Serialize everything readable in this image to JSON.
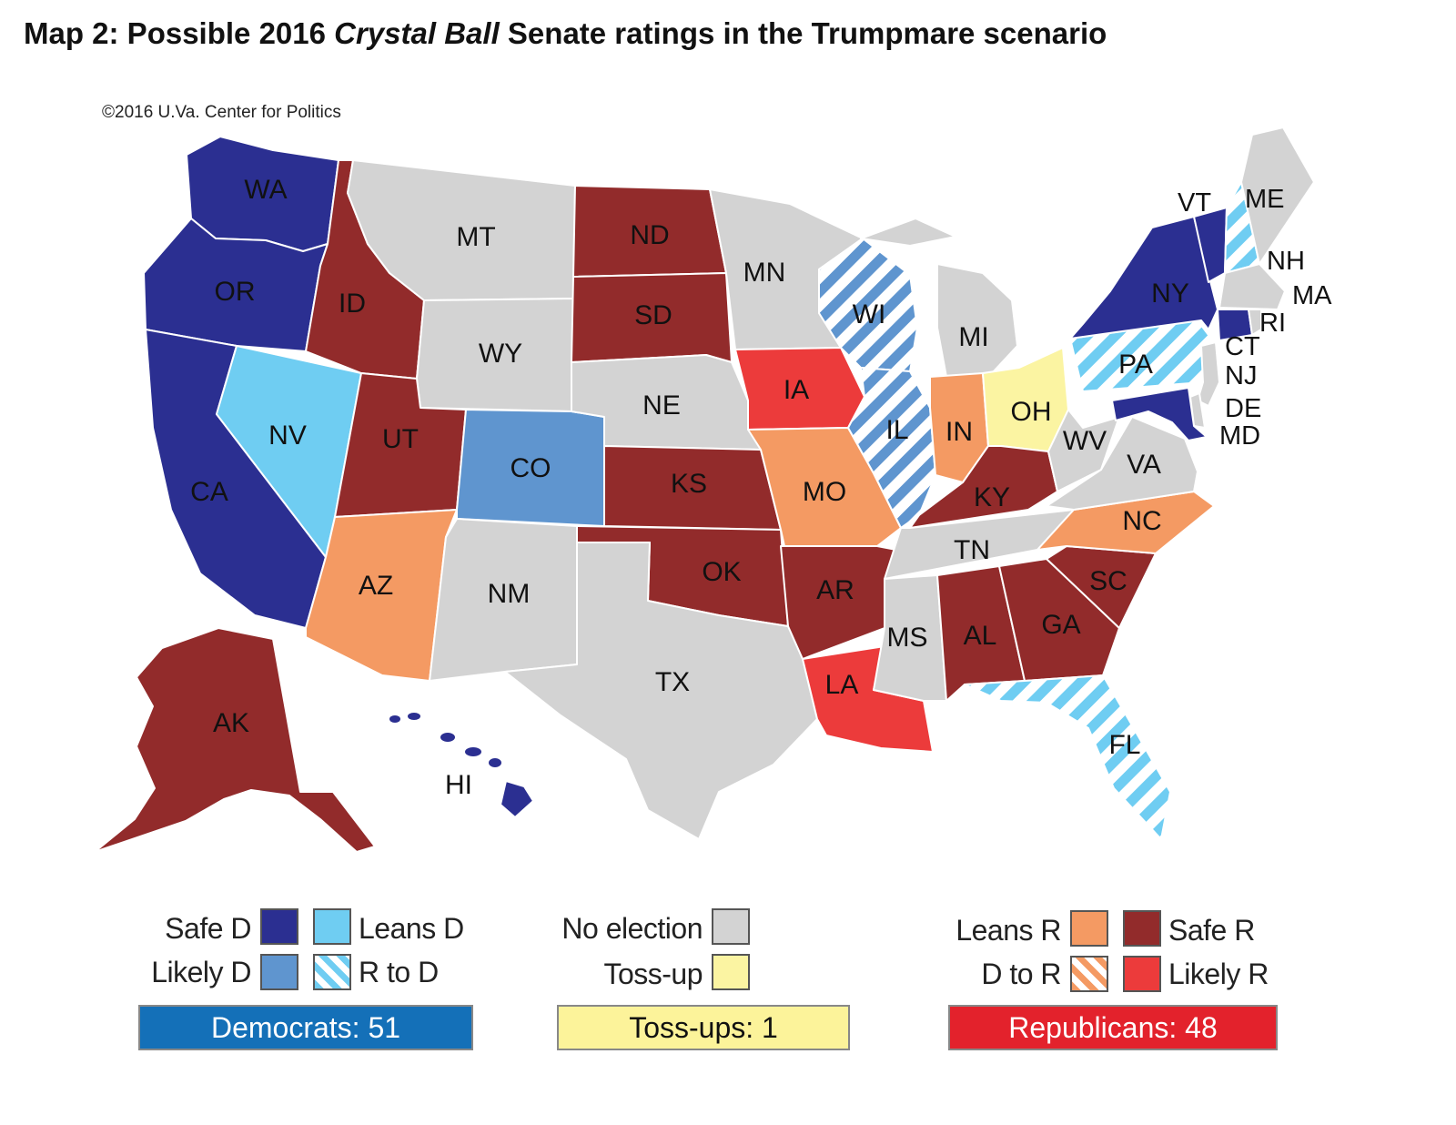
{
  "title": {
    "prefix": "Map 2: Possible 2016 ",
    "emphasis": "Crystal Ball",
    "suffix": " Senate ratings in the Trumpmare scenario"
  },
  "credit": "©2016 U.Va. Center for Politics",
  "colors": {
    "safe_d": "#2b2f91",
    "likely_d": "#5f95cf",
    "leans_d": "#6fcdf2",
    "safe_r": "#922b2b",
    "likely_r": "#ec3b3b",
    "leans_r": "#f49a63",
    "no_election": "#d3d3d3",
    "toss_up": "#fbf4a2",
    "democrats_bar": "#1470b8",
    "tossups_bar": "#fcf39a",
    "republicans_bar": "#e3222c"
  },
  "states": {
    "WA": "WA",
    "OR": "OR",
    "CA": "CA",
    "NV": "NV",
    "ID": "ID",
    "MT": "MT",
    "WY": "WY",
    "UT": "UT",
    "AZ": "AZ",
    "CO": "CO",
    "NM": "NM",
    "ND": "ND",
    "SD": "SD",
    "NE": "NE",
    "KS": "KS",
    "OK": "OK",
    "TX": "TX",
    "MN": "MN",
    "IA": "IA",
    "MO": "MO",
    "AR": "AR",
    "LA": "LA",
    "WI": "WI",
    "IL": "IL",
    "MI": "MI",
    "IN": "IN",
    "OH": "OH",
    "KY": "KY",
    "TN": "TN",
    "MS": "MS",
    "AL": "AL",
    "GA": "GA",
    "FL": "FL",
    "SC": "SC",
    "NC": "NC",
    "VA": "VA",
    "WV": "WV",
    "PA": "PA",
    "NY": "NY",
    "VT": "VT",
    "NH": "NH",
    "ME": "ME",
    "MA": "MA",
    "RI": "RI",
    "CT": "CT",
    "NJ": "NJ",
    "DE": "DE",
    "MD": "MD",
    "AK": "AK",
    "HI": "HI"
  },
  "legend": {
    "safe_d": "Safe D",
    "likely_d": "Likely D",
    "leans_d": "Leans D",
    "r_to_d": "R to D",
    "no_election": "No election",
    "toss_up": "Toss-up",
    "leans_r": "Leans R",
    "d_to_r": "D to R",
    "safe_r": "Safe R",
    "likely_r": "Likely R"
  },
  "totals": {
    "democrats": "Democrats: 51",
    "tossups": "Toss-ups: 1",
    "republicans": "Republicans: 48"
  }
}
